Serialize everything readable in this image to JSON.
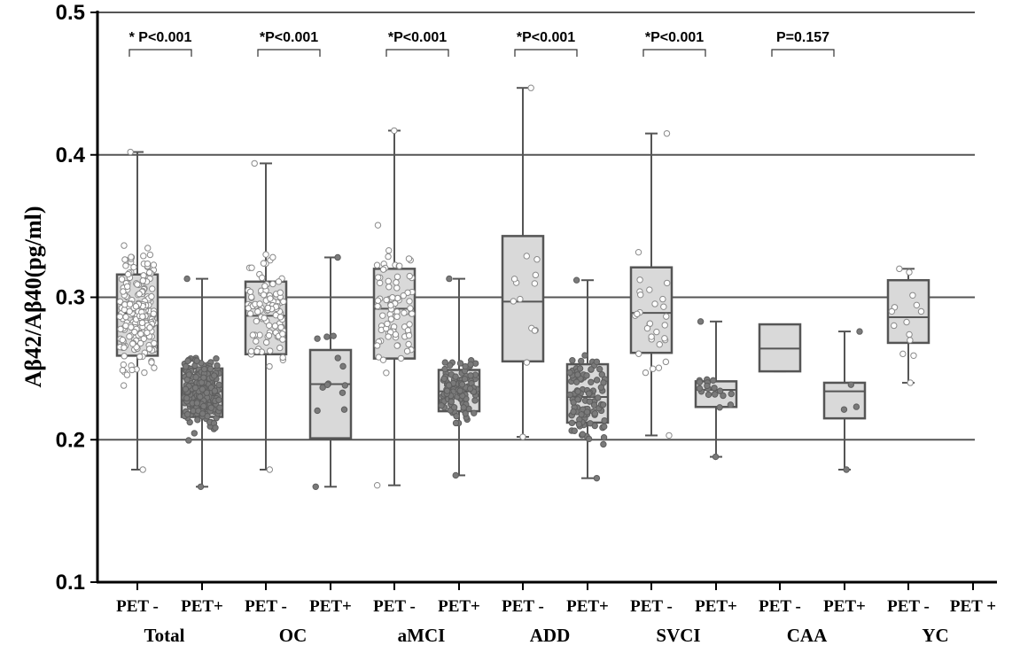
{
  "chart_data": {
    "type": "box",
    "ylabel": "Aβ42/Aβ40(pg/ml)",
    "ylim": [
      0.1,
      0.5
    ],
    "yticks": [
      "0.1",
      "0.2",
      "0.3",
      "0.4",
      "0.5"
    ],
    "grid": "horizontal at 0.2, 0.3, 0.4, 0.5",
    "groups": [
      {
        "name": "Total",
        "p_value": "* P<0.001",
        "boxes": [
          {
            "label": "PET -",
            "min": 0.179,
            "q1": 0.259,
            "median": 0.289,
            "q3": 0.316,
            "max": 0.402,
            "n_points": 200,
            "point_color": "#ffffff"
          },
          {
            "label": "PET+",
            "min": 0.167,
            "q1": 0.216,
            "median": 0.234,
            "q3": 0.25,
            "max": 0.313,
            "n_points": 220,
            "point_color": "#777777"
          }
        ]
      },
      {
        "name": "OC",
        "p_value": "*P<0.001",
        "boxes": [
          {
            "label": "PET -",
            "min": 0.179,
            "q1": 0.26,
            "median": 0.287,
            "q3": 0.311,
            "max": 0.394,
            "n_points": 100,
            "point_color": "#ffffff"
          },
          {
            "label": "PET+",
            "min": 0.167,
            "q1": 0.201,
            "median": 0.239,
            "q3": 0.263,
            "max": 0.328,
            "n_points": 14,
            "point_color": "#777777"
          }
        ]
      },
      {
        "name": "aMCI",
        "p_value": "*P<0.001",
        "boxes": [
          {
            "label": "PET -",
            "min": 0.168,
            "q1": 0.257,
            "median": 0.292,
            "q3": 0.32,
            "max": 0.417,
            "n_points": 90,
            "point_color": "#ffffff"
          },
          {
            "label": "PET+",
            "min": 0.175,
            "q1": 0.22,
            "median": 0.234,
            "q3": 0.249,
            "max": 0.313,
            "n_points": 110,
            "point_color": "#777777"
          }
        ]
      },
      {
        "name": "ADD",
        "p_value": "*P<0.001",
        "boxes": [
          {
            "label": "PET -",
            "min": 0.202,
            "q1": 0.255,
            "median": 0.297,
            "q3": 0.343,
            "max": 0.447,
            "n_points": 14,
            "point_color": "#ffffff"
          },
          {
            "label": "PET+",
            "min": 0.173,
            "q1": 0.212,
            "median": 0.23,
            "q3": 0.253,
            "max": 0.312,
            "n_points": 100,
            "point_color": "#777777"
          }
        ]
      },
      {
        "name": "SVCI",
        "p_value": "*P<0.001",
        "boxes": [
          {
            "label": "PET -",
            "min": 0.203,
            "q1": 0.261,
            "median": 0.289,
            "q3": 0.321,
            "max": 0.415,
            "n_points": 30,
            "point_color": "#ffffff"
          },
          {
            "label": "PET+",
            "min": 0.188,
            "q1": 0.223,
            "median": 0.235,
            "q3": 0.241,
            "max": 0.283,
            "n_points": 20,
            "point_color": "#777777"
          }
        ]
      },
      {
        "name": "CAA",
        "p_value": "P=0.157",
        "boxes": [
          {
            "label": "PET -",
            "min": 0.248,
            "q1": 0.248,
            "median": 0.264,
            "q3": 0.281,
            "max": 0.281,
            "n_points": 0,
            "point_color": "#ffffff"
          },
          {
            "label": "PET+",
            "min": 0.179,
            "q1": 0.215,
            "median": 0.234,
            "q3": 0.24,
            "max": 0.276,
            "n_points": 5,
            "point_color": "#777777"
          }
        ]
      },
      {
        "name": "YC",
        "p_value": "",
        "boxes": [
          {
            "label": "PET -",
            "min": 0.24,
            "q1": 0.268,
            "median": 0.286,
            "q3": 0.312,
            "max": 0.32,
            "n_points": 14,
            "point_color": "#ffffff"
          },
          {
            "label": "PET +",
            "min": null,
            "q1": null,
            "median": null,
            "q3": null,
            "max": null,
            "n_points": 0,
            "point_color": "#777777"
          }
        ]
      }
    ],
    "colors": {
      "box_fill": "#d9d9d9",
      "box_stroke": "#555555",
      "grid": "#555555",
      "axis": "#000000"
    }
  }
}
